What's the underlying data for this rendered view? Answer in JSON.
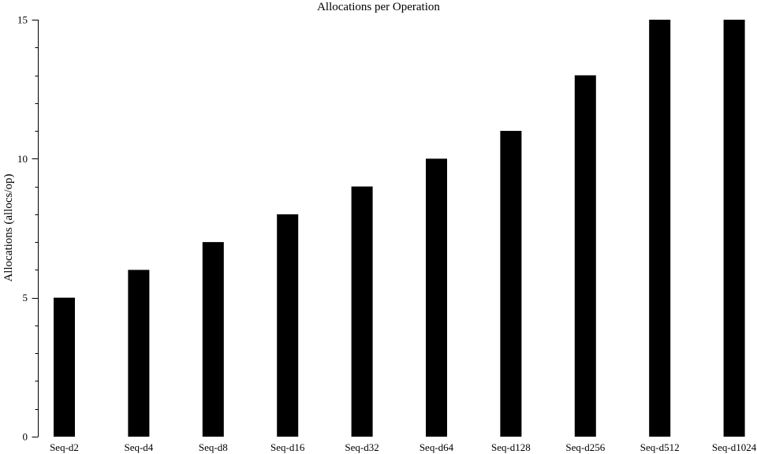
{
  "chart_data": {
    "type": "bar",
    "title": "Allocations per Operation",
    "xlabel": "",
    "ylabel": "Allocations (allocs/op)",
    "categories": [
      "Seq-d2",
      "Seq-d4",
      "Seq-d8",
      "Seq-d16",
      "Seq-d32",
      "Seq-d64",
      "Seq-d128",
      "Seq-d256",
      "Seq-d512",
      "Seq-d1024"
    ],
    "values": [
      5,
      6,
      7,
      8,
      9,
      10,
      11,
      13,
      15,
      15
    ],
    "ylim": [
      0,
      15
    ],
    "yticks": [
      0,
      5,
      10,
      15
    ],
    "ytick_labels": [
      "0",
      "5",
      "10",
      "15"
    ],
    "minor_ytick_step": 1,
    "grid": false,
    "legend": "none",
    "colors": {
      "bar": "#000000",
      "axis": "#000000",
      "background": "#ffffff"
    }
  }
}
